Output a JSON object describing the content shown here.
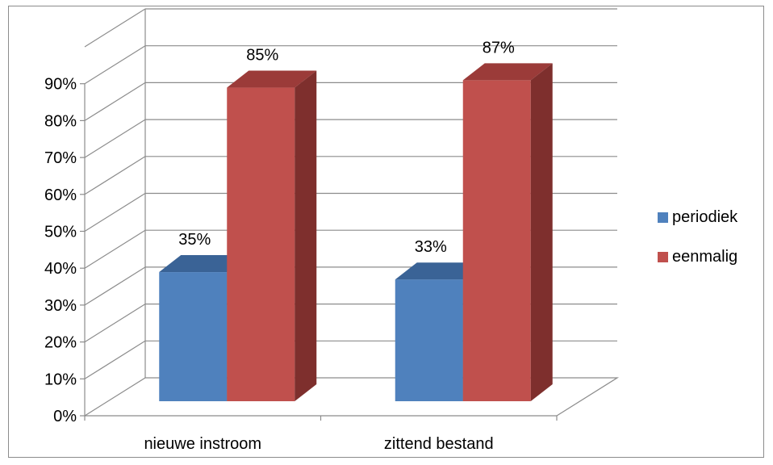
{
  "chart_data": {
    "type": "bar",
    "categories": [
      "nieuwe instroom",
      "zittend bestand"
    ],
    "series": [
      {
        "name": "periodiek",
        "values": [
          35,
          33
        ],
        "color": "#4F81BD",
        "top_color": "#3A6396",
        "side_color": "#2C4D75"
      },
      {
        "name": "eenmalig",
        "values": [
          85,
          87
        ],
        "color": "#C0504D",
        "top_color": "#9B3B39",
        "side_color": "#7E2F2D"
      }
    ],
    "data_labels": [
      [
        "35%",
        "33%"
      ],
      [
        "85%",
        "87%"
      ]
    ],
    "y_ticks": [
      "0%",
      "10%",
      "20%",
      "30%",
      "40%",
      "50%",
      "60%",
      "70%",
      "80%",
      "90%"
    ],
    "ylim": [
      0,
      90
    ],
    "grid": true,
    "legend_position": "right",
    "style": "3d-clustered-column"
  }
}
